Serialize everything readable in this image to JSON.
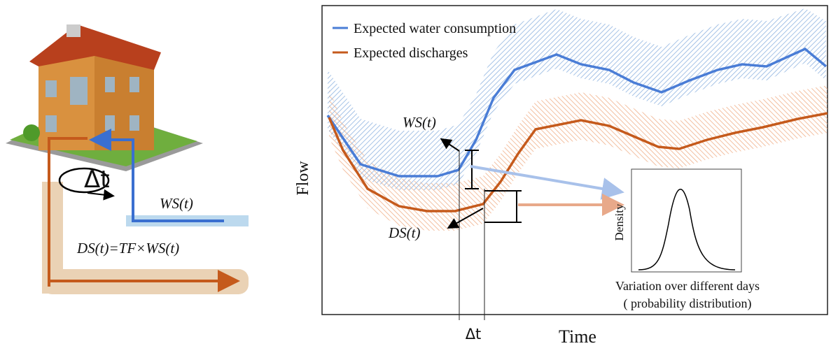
{
  "left_panel": {
    "delta_label": "Δt",
    "supply_label": "WS(t)",
    "discharge_label": "DS(t)=TF×WS(t)"
  },
  "chart": {
    "legend": [
      "Expected water consumption",
      "Expected discharges"
    ],
    "y_label": "Flow",
    "x_label": "Time",
    "ws_label": "WS(t)",
    "ds_label": "DS(t)",
    "delta_label": "Δt"
  },
  "inset": {
    "y_label": "Density",
    "caption": [
      "Variation over different days",
      "( probability distribution)"
    ]
  }
}
